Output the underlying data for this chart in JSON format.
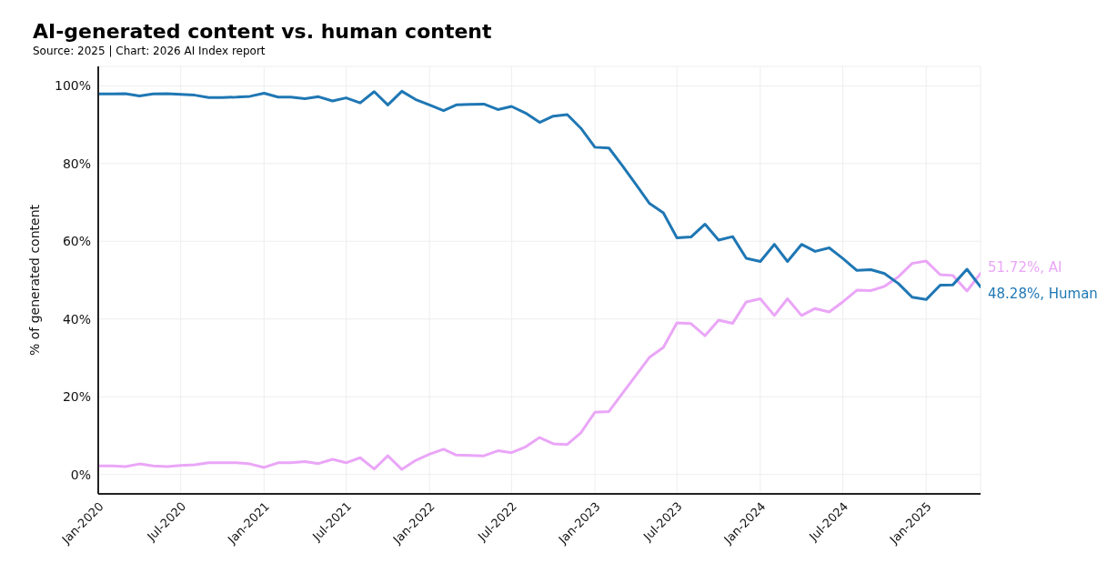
{
  "chart_data": {
    "type": "line",
    "title": "AI-generated content vs. human content",
    "subtitle": "Source: 2025 | Chart: 2026 AI Index report",
    "ylabel": "% of generated content",
    "x": [
      "2020-01",
      "2020-02",
      "2020-03",
      "2020-04",
      "2020-05",
      "2020-06",
      "2020-07",
      "2020-08",
      "2020-09",
      "2020-10",
      "2020-11",
      "2020-12",
      "2021-01",
      "2021-02",
      "2021-03",
      "2021-04",
      "2021-05",
      "2021-06",
      "2021-07",
      "2021-08",
      "2021-09",
      "2021-10",
      "2021-11",
      "2021-12",
      "2022-01",
      "2022-02",
      "2022-03",
      "2022-04",
      "2022-05",
      "2022-06",
      "2022-07",
      "2022-08",
      "2022-09",
      "2022-10",
      "2022-11",
      "2022-12",
      "2023-01",
      "2023-02",
      "2023-03",
      "2023-04",
      "2023-05",
      "2023-06",
      "2023-07",
      "2023-08",
      "2023-09",
      "2023-10",
      "2023-11",
      "2023-12",
      "2024-01",
      "2024-02",
      "2024-03",
      "2024-04",
      "2024-05",
      "2024-06",
      "2024-07",
      "2024-08",
      "2024-09",
      "2024-10",
      "2024-11",
      "2024-12",
      "2025-01",
      "2025-02",
      "2025-03",
      "2025-04",
      "2025-05"
    ],
    "series": [
      {
        "name": "AI",
        "color": "#eaa6f7",
        "values": [
          2.2,
          2.2,
          2.0,
          2.7,
          2.2,
          2.0,
          2.3,
          2.5,
          3.0,
          3.0,
          3.0,
          2.7,
          1.8,
          3.0,
          3.0,
          3.3,
          2.8,
          3.9,
          3.0,
          4.3,
          1.4,
          4.8,
          1.3,
          3.6,
          5.2,
          6.5,
          5.0,
          4.9,
          4.8,
          6.1,
          5.6,
          7.1,
          9.5,
          7.9,
          7.7,
          10.7,
          16.0,
          16.2,
          20.6,
          25.4,
          30.1,
          32.7,
          39.0,
          38.8,
          35.7,
          39.7,
          38.9,
          44.4,
          45.2,
          40.9,
          45.2,
          40.9,
          42.7,
          41.8,
          44.4,
          47.4,
          47.3,
          48.4,
          50.9,
          54.3,
          54.9,
          51.4,
          51.2,
          47.2,
          51.72
        ],
        "value_labels": [
          null,
          null,
          null,
          null,
          null,
          null,
          null,
          null,
          null,
          null,
          null,
          null,
          null,
          null,
          null,
          null,
          null,
          null,
          null,
          null,
          null,
          null,
          null,
          null,
          null,
          null,
          null,
          null,
          null,
          null,
          null,
          null,
          null,
          null,
          null,
          null,
          null,
          null,
          null,
          null,
          null,
          null,
          null,
          null,
          null,
          null,
          null,
          null,
          null,
          null,
          null,
          null,
          null,
          null,
          null,
          null,
          null,
          null,
          null,
          null,
          null,
          null,
          null,
          null,
          "51.72%,"
        ]
      },
      {
        "name": "Human",
        "color": "#1f77b4",
        "values": [
          97.9,
          97.9,
          98.0,
          97.4,
          97.9,
          98.0,
          97.8,
          97.6,
          97.0,
          97.0,
          97.1,
          97.3,
          98.1,
          97.1,
          97.1,
          96.7,
          97.2,
          96.1,
          96.9,
          95.6,
          98.5,
          95.1,
          98.6,
          96.5,
          95.1,
          93.6,
          95.1,
          95.2,
          95.3,
          93.9,
          94.7,
          93.0,
          90.6,
          92.2,
          92.6,
          89.1,
          84.2,
          84.0,
          79.7,
          74.7,
          69.8,
          67.3,
          60.9,
          61.1,
          64.4,
          60.3,
          61.2,
          55.6,
          54.8,
          59.2,
          54.8,
          59.2,
          57.4,
          58.3,
          55.6,
          52.5,
          52.7,
          51.7,
          49.1,
          45.6,
          45.0,
          48.7,
          48.8,
          52.8,
          48.28
        ],
        "value_labels": [
          null,
          null,
          null,
          null,
          null,
          null,
          null,
          null,
          null,
          null,
          null,
          null,
          null,
          null,
          null,
          null,
          null,
          null,
          null,
          null,
          null,
          null,
          null,
          null,
          null,
          null,
          null,
          null,
          null,
          null,
          null,
          null,
          null,
          null,
          null,
          null,
          null,
          null,
          null,
          null,
          null,
          null,
          null,
          null,
          null,
          null,
          null,
          null,
          null,
          null,
          null,
          null,
          null,
          null,
          null,
          null,
          null,
          null,
          null,
          null,
          null,
          null,
          null,
          null,
          "48.28%,"
        ]
      }
    ],
    "xlim": [
      "2020-01",
      "2025-05"
    ],
    "xticks": [
      {
        "value": "2020-01",
        "label": "Jan-2020"
      },
      {
        "value": "2020-07",
        "label": "Jul-2020"
      },
      {
        "value": "2021-01",
        "label": "Jan-2021"
      },
      {
        "value": "2021-07",
        "label": "Jul-2021"
      },
      {
        "value": "2022-01",
        "label": "Jan-2022"
      },
      {
        "value": "2022-07",
        "label": "Jul-2022"
      },
      {
        "value": "2023-01",
        "label": "Jan-2023"
      },
      {
        "value": "2023-07",
        "label": "Jul-2023"
      },
      {
        "value": "2024-01",
        "label": "Jan-2024"
      },
      {
        "value": "2024-07",
        "label": "Jul-2024"
      },
      {
        "value": "2025-01",
        "label": "Jan-2025"
      }
    ],
    "ylim": [
      -5,
      105
    ],
    "yticks": [
      {
        "value": 0,
        "label": "0%"
      },
      {
        "value": 20,
        "label": "20%"
      },
      {
        "value": 40,
        "label": "40%"
      },
      {
        "value": 60,
        "label": "60%"
      },
      {
        "value": 80,
        "label": "80%"
      },
      {
        "value": 100,
        "label": "100%"
      }
    ],
    "grid": true,
    "legend": false,
    "marker": "none",
    "line_style": "solid"
  }
}
